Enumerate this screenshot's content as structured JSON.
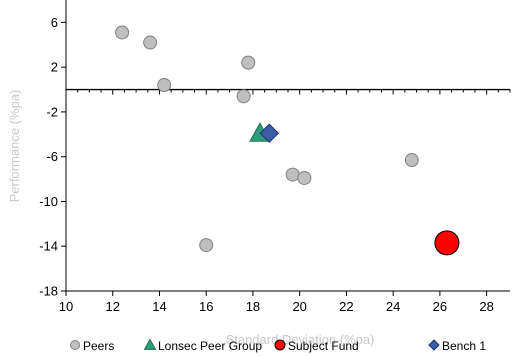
{
  "chart_data": {
    "type": "scatter",
    "xlabel": "Standard Deviation (%pa)",
    "ylabel": "Performance (%pa)",
    "xlim": [
      10,
      29
    ],
    "ylim": [
      -18,
      8
    ],
    "x_ticks": [
      10,
      12,
      14,
      16,
      18,
      20,
      22,
      24,
      26,
      28
    ],
    "y_ticks": [
      6,
      2,
      -2,
      -6,
      -10,
      -14,
      -18
    ],
    "grid": false,
    "legend_position": "bottom",
    "series": [
      {
        "name": "Peers",
        "marker": "circle",
        "color": "#bfbfbf",
        "points": [
          {
            "x": 12.4,
            "y": 5.1
          },
          {
            "x": 13.6,
            "y": 4.2
          },
          {
            "x": 14.2,
            "y": 0.4
          },
          {
            "x": 17.8,
            "y": 2.4
          },
          {
            "x": 17.6,
            "y": -0.6
          },
          {
            "x": 24.8,
            "y": -6.3
          },
          {
            "x": 19.7,
            "y": -7.6
          },
          {
            "x": 20.2,
            "y": -7.9
          },
          {
            "x": 16.0,
            "y": -13.9
          }
        ]
      },
      {
        "name": "Lonsec Peer Group",
        "marker": "triangle",
        "color": "#2e9c7a",
        "points": [
          {
            "x": 18.3,
            "y": -3.9
          }
        ]
      },
      {
        "name": "Subject Fund",
        "marker": "circle-large",
        "color": "#ff0000",
        "points": [
          {
            "x": 26.3,
            "y": -13.7
          }
        ]
      },
      {
        "name": "Bench 1",
        "marker": "diamond",
        "color": "#3a5fa8",
        "points": [
          {
            "x": 18.7,
            "y": -3.9
          }
        ]
      }
    ]
  }
}
